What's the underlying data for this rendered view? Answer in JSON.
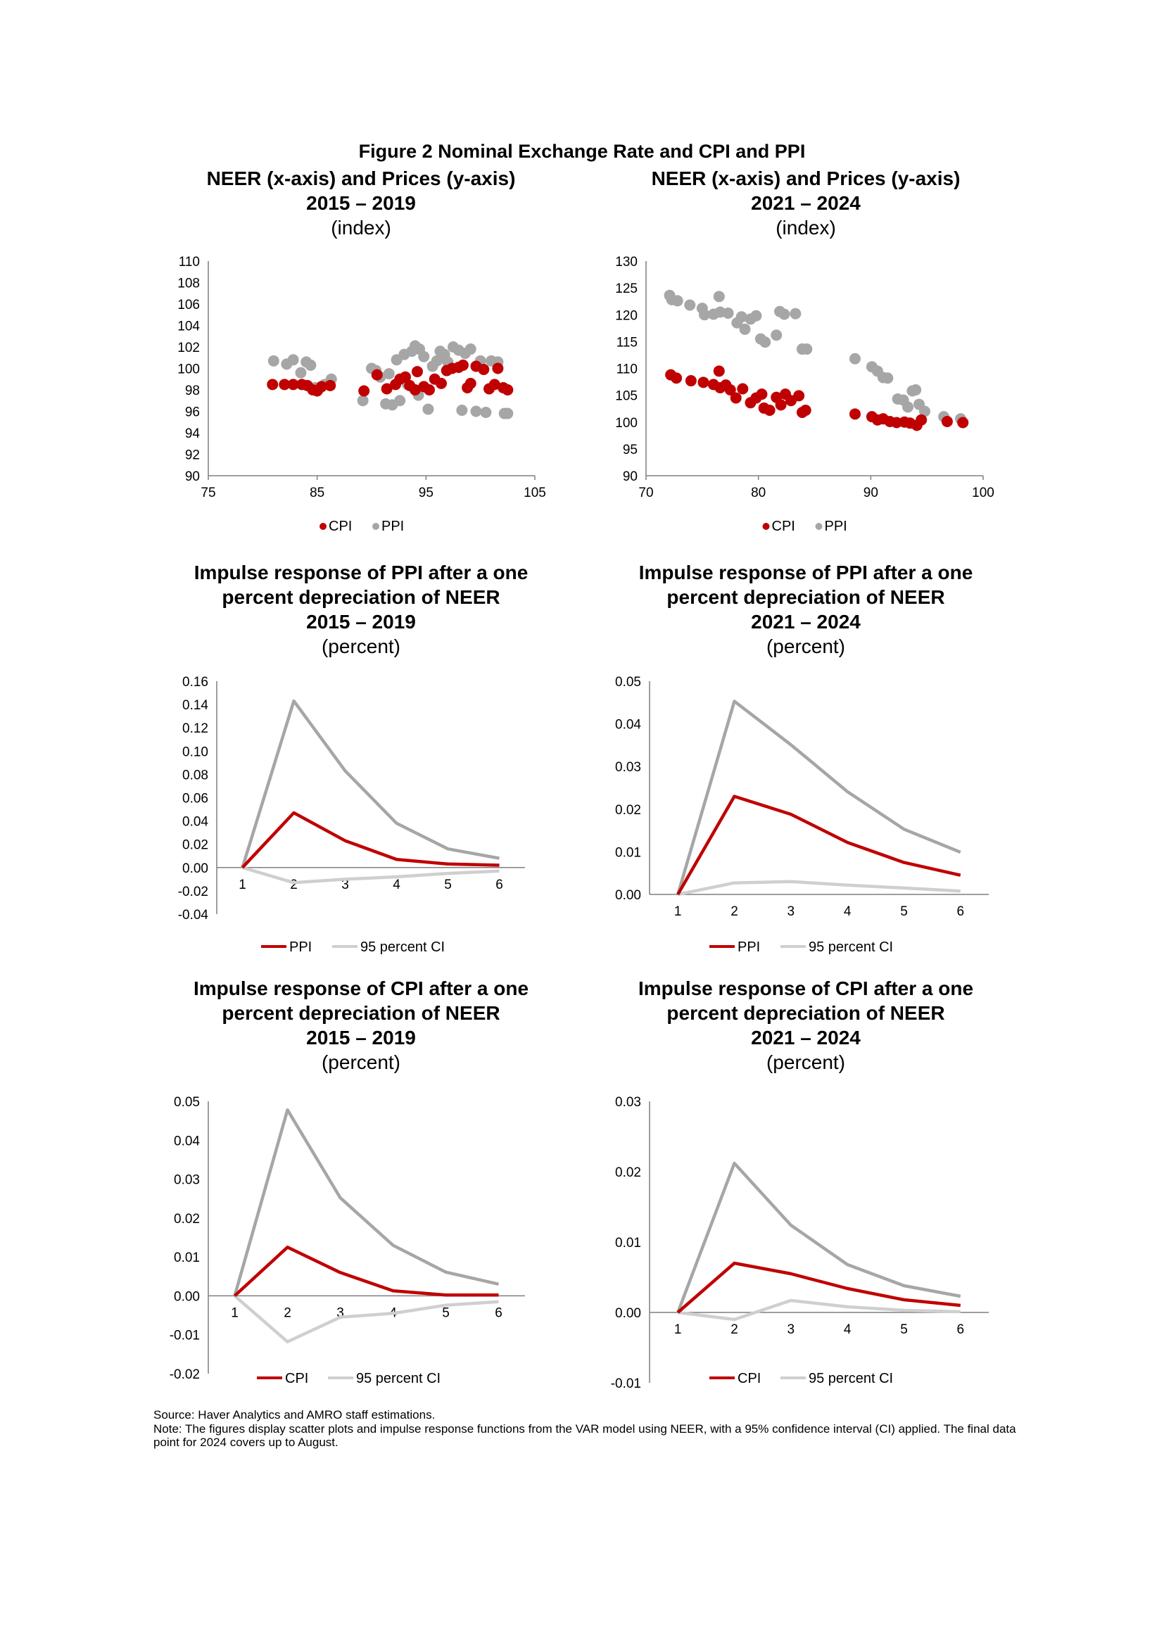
{
  "figure_title": "Figure 2 Nominal Exchange Rate and CPI and PPI",
  "panels": [
    {
      "title_lines": [
        "NEER (x-axis) and Prices (y-axis)",
        "2015 – 2019"
      ],
      "unit": "(index)"
    },
    {
      "title_lines": [
        "NEER (x-axis) and Prices (y-axis)",
        "2021 – 2024"
      ],
      "unit": "(index)"
    },
    {
      "title_lines": [
        "Impulse response of PPI after a one",
        "percent depreciation of NEER",
        "2015 – 2019"
      ],
      "unit": "(percent)"
    },
    {
      "title_lines": [
        "Impulse response of PPI after a one",
        "percent depreciation of NEER",
        "2021 – 2024"
      ],
      "unit": "(percent)"
    },
    {
      "title_lines": [
        "Impulse response of CPI after a one",
        "percent depreciation of NEER",
        "2015 – 2019"
      ],
      "unit": "(percent)"
    },
    {
      "title_lines": [
        "Impulse response of CPI after a one",
        "percent depreciation of NEER",
        "2021 – 2024"
      ],
      "unit": "(percent)"
    }
  ],
  "colors": {
    "cpi": "#c00000",
    "ppi": "#a6a6a6",
    "ci": "#a6a6a6",
    "axis": "#7f7f7f"
  },
  "source": "Source: Haver Analytics and AMRO staff estimations.",
  "note": "Note: The figures display scatter plots and impulse response functions from the VAR model using NEER, with a 95% confidence interval (CI) applied. The final data point for 2024 covers up to August.",
  "chart_data": [
    {
      "type": "scatter",
      "xlim": [
        75,
        105
      ],
      "xticks": [
        75,
        85,
        95,
        105
      ],
      "ylim": [
        90,
        110
      ],
      "yticks": [
        90,
        92,
        94,
        96,
        98,
        100,
        102,
        104,
        106,
        108,
        110
      ],
      "legend": "bottom",
      "series": [
        {
          "name": "CPI",
          "color": "#c00000",
          "points": [
            [
              80.9,
              98.5
            ],
            [
              82.0,
              98.5
            ],
            [
              82.8,
              98.5
            ],
            [
              83.6,
              98.5
            ],
            [
              84.1,
              98.4
            ],
            [
              84.6,
              98.0
            ],
            [
              85.0,
              97.9
            ],
            [
              85.4,
              98.3
            ],
            [
              86.2,
              98.4
            ],
            [
              89.3,
              97.9
            ],
            [
              90.5,
              99.4
            ],
            [
              91.4,
              98.1
            ],
            [
              92.2,
              98.5
            ],
            [
              92.6,
              99.0
            ],
            [
              93.1,
              99.2
            ],
            [
              93.5,
              98.4
            ],
            [
              94.0,
              98.0
            ],
            [
              94.2,
              99.7
            ],
            [
              94.8,
              98.3
            ],
            [
              95.3,
              98.0
            ],
            [
              95.8,
              99.0
            ],
            [
              96.4,
              98.6
            ],
            [
              96.9,
              99.8
            ],
            [
              97.4,
              100.0
            ],
            [
              98.0,
              100.1
            ],
            [
              98.4,
              100.3
            ],
            [
              98.8,
              98.2
            ],
            [
              99.1,
              98.6
            ],
            [
              99.6,
              100.2
            ],
            [
              100.3,
              99.9
            ],
            [
              100.8,
              98.1
            ],
            [
              101.3,
              98.5
            ],
            [
              101.6,
              100.0
            ],
            [
              102.1,
              98.2
            ],
            [
              102.5,
              98.0
            ]
          ]
        },
        {
          "name": "PPI",
          "color": "#a6a6a6",
          "points": [
            [
              81.0,
              100.7
            ],
            [
              82.2,
              100.4
            ],
            [
              82.8,
              100.8
            ],
            [
              83.5,
              99.6
            ],
            [
              84.0,
              100.6
            ],
            [
              84.4,
              100.3
            ],
            [
              84.8,
              98.2
            ],
            [
              85.1,
              98.0
            ],
            [
              85.7,
              98.5
            ],
            [
              86.3,
              99.0
            ],
            [
              89.2,
              97.0
            ],
            [
              90.0,
              100.0
            ],
            [
              90.4,
              99.8
            ],
            [
              90.8,
              99.2
            ],
            [
              91.3,
              96.7
            ],
            [
              91.6,
              99.5
            ],
            [
              91.9,
              96.6
            ],
            [
              92.3,
              100.8
            ],
            [
              92.6,
              97.0
            ],
            [
              93.0,
              101.3
            ],
            [
              93.3,
              98.5
            ],
            [
              93.7,
              101.6
            ],
            [
              94.0,
              102.1
            ],
            [
              94.3,
              97.5
            ],
            [
              94.4,
              101.8
            ],
            [
              94.8,
              101.1
            ],
            [
              95.2,
              96.2
            ],
            [
              95.6,
              100.2
            ],
            [
              96.0,
              100.7
            ],
            [
              96.3,
              101.6
            ],
            [
              96.7,
              101.3
            ],
            [
              97.0,
              100.6
            ],
            [
              97.5,
              102.0
            ],
            [
              98.0,
              101.7
            ],
            [
              98.3,
              96.1
            ],
            [
              98.6,
              101.4
            ],
            [
              99.1,
              101.8
            ],
            [
              99.6,
              96.0
            ],
            [
              100.0,
              100.7
            ],
            [
              100.5,
              95.9
            ],
            [
              101.0,
              100.7
            ],
            [
              101.6,
              100.6
            ],
            [
              102.2,
              95.8
            ],
            [
              102.5,
              95.8
            ]
          ]
        }
      ]
    },
    {
      "type": "scatter",
      "xlim": [
        70,
        100
      ],
      "xticks": [
        70,
        80,
        90,
        100
      ],
      "ylim": [
        90,
        130
      ],
      "yticks": [
        90,
        95,
        100,
        105,
        110,
        115,
        120,
        125,
        130
      ],
      "legend": "bottom",
      "series": [
        {
          "name": "CPI",
          "color": "#c00000",
          "points": [
            [
              72.2,
              108.8
            ],
            [
              72.7,
              108.2
            ],
            [
              74.0,
              107.7
            ],
            [
              75.1,
              107.4
            ],
            [
              76.0,
              107.0
            ],
            [
              76.5,
              109.5
            ],
            [
              76.6,
              106.4
            ],
            [
              77.1,
              106.9
            ],
            [
              77.5,
              106.0
            ],
            [
              78.0,
              104.5
            ],
            [
              78.6,
              106.2
            ],
            [
              79.3,
              103.6
            ],
            [
              79.8,
              104.5
            ],
            [
              80.3,
              105.2
            ],
            [
              80.5,
              102.6
            ],
            [
              81.0,
              102.2
            ],
            [
              81.6,
              104.6
            ],
            [
              82.0,
              103.2
            ],
            [
              82.4,
              105.2
            ],
            [
              82.9,
              104.0
            ],
            [
              83.6,
              104.9
            ],
            [
              83.9,
              101.8
            ],
            [
              84.2,
              102.2
            ],
            [
              88.6,
              101.5
            ],
            [
              90.1,
              101.0
            ],
            [
              90.6,
              100.4
            ],
            [
              91.1,
              100.6
            ],
            [
              91.7,
              100.1
            ],
            [
              92.3,
              99.9
            ],
            [
              93.0,
              100.0
            ],
            [
              93.5,
              99.8
            ],
            [
              94.1,
              99.4
            ],
            [
              94.5,
              100.4
            ],
            [
              96.8,
              100.1
            ],
            [
              98.2,
              99.9
            ]
          ]
        },
        {
          "name": "PPI",
          "color": "#a6a6a6",
          "points": [
            [
              72.1,
              123.6
            ],
            [
              72.3,
              122.8
            ],
            [
              72.8,
              122.6
            ],
            [
              73.9,
              121.8
            ],
            [
              75.0,
              121.2
            ],
            [
              75.2,
              120.0
            ],
            [
              76.0,
              120.1
            ],
            [
              76.5,
              123.4
            ],
            [
              76.6,
              120.5
            ],
            [
              77.3,
              120.3
            ],
            [
              78.1,
              118.5
            ],
            [
              78.5,
              119.6
            ],
            [
              78.8,
              117.3
            ],
            [
              79.3,
              119.2
            ],
            [
              79.8,
              119.8
            ],
            [
              80.2,
              115.5
            ],
            [
              80.6,
              114.9
            ],
            [
              81.6,
              116.2
            ],
            [
              81.9,
              120.6
            ],
            [
              82.3,
              120.1
            ],
            [
              83.3,
              120.2
            ],
            [
              83.9,
              113.6
            ],
            [
              84.3,
              113.6
            ],
            [
              88.6,
              111.8
            ],
            [
              90.1,
              110.3
            ],
            [
              90.6,
              109.5
            ],
            [
              91.1,
              108.3
            ],
            [
              91.5,
              108.2
            ],
            [
              92.4,
              104.3
            ],
            [
              92.9,
              104.1
            ],
            [
              93.3,
              102.8
            ],
            [
              93.7,
              105.8
            ],
            [
              94.0,
              106.0
            ],
            [
              94.3,
              103.3
            ],
            [
              94.8,
              102.0
            ],
            [
              96.5,
              101.0
            ],
            [
              98.0,
              100.6
            ]
          ]
        }
      ]
    },
    {
      "type": "line",
      "x": [
        1,
        2,
        3,
        4,
        5,
        6
      ],
      "ylim": [
        -0.04,
        0.16
      ],
      "ytick_labels": [
        "-0.04",
        "-0.02",
        "0.00",
        "0.02",
        "0.04",
        "0.06",
        "0.08",
        "0.10",
        "0.12",
        "0.14",
        "0.16"
      ],
      "legend": "bottom",
      "series": [
        {
          "name": "95 percent CI",
          "kind": "upper",
          "color": "#a6a6a6",
          "values": [
            0.0,
            0.143,
            0.083,
            0.038,
            0.016,
            0.008
          ]
        },
        {
          "name": "95 percent CI",
          "kind": "lower",
          "color": "#cfcfcf",
          "values": [
            0.0,
            -0.013,
            -0.01,
            -0.008,
            -0.005,
            -0.003
          ]
        },
        {
          "name": "PPI",
          "kind": "main",
          "color": "#c00000",
          "values": [
            0.0,
            0.047,
            0.023,
            0.007,
            0.003,
            0.002
          ]
        }
      ]
    },
    {
      "type": "line",
      "x": [
        1,
        2,
        3,
        4,
        5,
        6
      ],
      "ylim": [
        0.0,
        0.05
      ],
      "ytick_labels": [
        "0.00",
        "0.01",
        "0.02",
        "0.03",
        "0.04",
        "0.05"
      ],
      "legend": "bottom",
      "series": [
        {
          "name": "95 percent CI",
          "kind": "upper",
          "color": "#a6a6a6",
          "values": [
            0.0,
            0.0453,
            0.0351,
            0.0241,
            0.0153,
            0.0099
          ]
        },
        {
          "name": "95 percent CI",
          "kind": "lower",
          "color": "#cfcfcf",
          "values": [
            0.0,
            0.0027,
            0.003,
            0.0022,
            0.0015,
            0.0008
          ]
        },
        {
          "name": "PPI",
          "kind": "main",
          "color": "#c00000",
          "values": [
            0.0,
            0.023,
            0.0188,
            0.0122,
            0.0075,
            0.0045
          ]
        }
      ]
    },
    {
      "type": "line",
      "x": [
        1,
        2,
        3,
        4,
        5,
        6
      ],
      "ylim": [
        -0.02,
        0.05
      ],
      "ytick_labels": [
        "-0.02",
        "-0.01",
        "0.00",
        "0.01",
        "0.02",
        "0.03",
        "0.04",
        "0.05"
      ],
      "legend": "bottom",
      "series": [
        {
          "name": "95 percent CI",
          "kind": "upper",
          "color": "#a6a6a6",
          "values": [
            0.0,
            0.0478,
            0.0252,
            0.013,
            0.0061,
            0.003
          ]
        },
        {
          "name": "95 percent CI",
          "kind": "lower",
          "color": "#cfcfcf",
          "values": [
            0.0,
            -0.0118,
            -0.0055,
            -0.0045,
            -0.0024,
            -0.0015
          ]
        },
        {
          "name": "CPI",
          "kind": "main",
          "color": "#c00000",
          "values": [
            0.0,
            0.0125,
            0.006,
            0.0013,
            0.0002,
            0.0002
          ]
        }
      ]
    },
    {
      "type": "line",
      "x": [
        1,
        2,
        3,
        4,
        5,
        6
      ],
      "ylim": [
        -0.01,
        0.03
      ],
      "ytick_labels": [
        "-0.01",
        "0.00",
        "0.01",
        "0.02",
        "0.03"
      ],
      "legend": "bottom",
      "series": [
        {
          "name": "95 percent CI",
          "kind": "upper",
          "color": "#a6a6a6",
          "values": [
            0.0,
            0.0212,
            0.0124,
            0.0068,
            0.0038,
            0.0023
          ]
        },
        {
          "name": "95 percent CI",
          "kind": "lower",
          "color": "#cfcfcf",
          "values": [
            0.0,
            -0.001,
            0.0017,
            0.0008,
            0.0003,
            0.0001
          ]
        },
        {
          "name": "CPI",
          "kind": "main",
          "color": "#c00000",
          "values": [
            0.0,
            0.007,
            0.0055,
            0.0034,
            0.0018,
            0.001
          ]
        }
      ]
    }
  ]
}
